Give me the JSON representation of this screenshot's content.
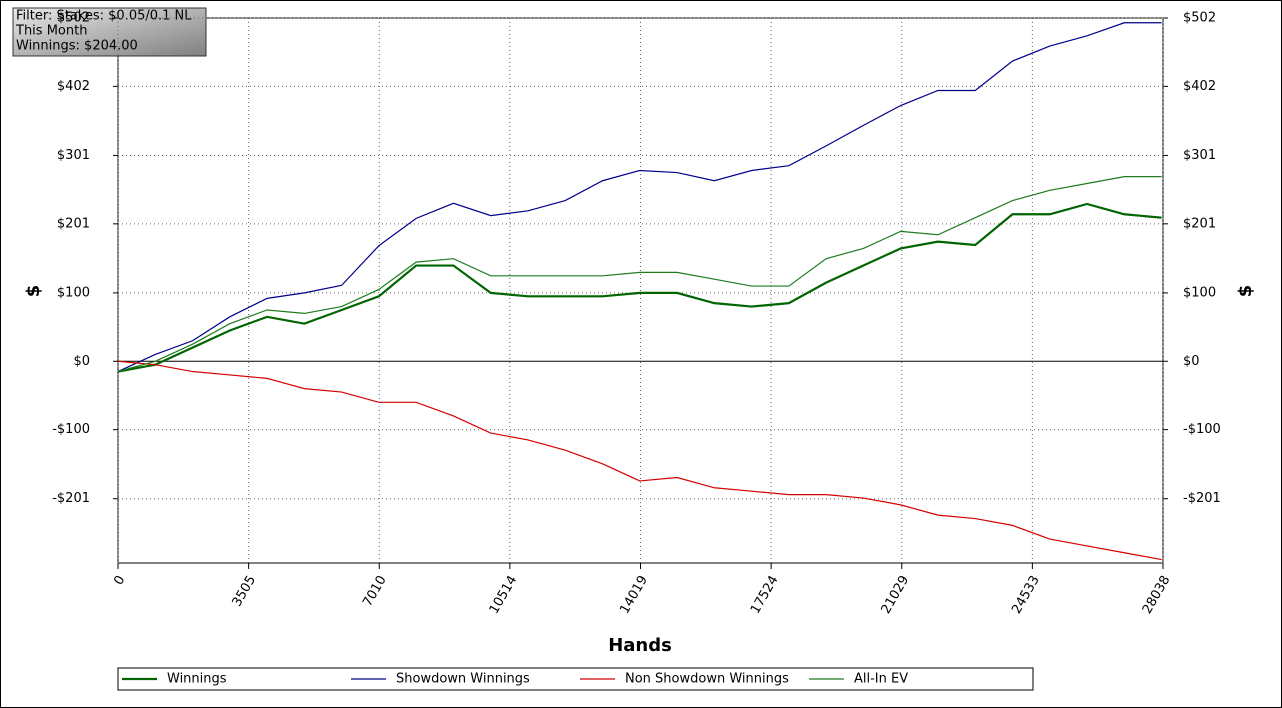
{
  "chart_data": {
    "type": "line",
    "annotations": [
      "Filter: Stakes: $0.05/0.1 NL",
      "This Month",
      "Winnings: $204.00"
    ],
    "x_label": "Hands",
    "y_label": "$",
    "x": [
      0,
      1000,
      2000,
      3000,
      4000,
      5000,
      6000,
      7000,
      8000,
      9000,
      10000,
      11000,
      12000,
      13000,
      14000,
      15000,
      16000,
      17000,
      18000,
      19000,
      20000,
      21000,
      22000,
      23000,
      24000,
      25000,
      26000,
      27000,
      28000
    ],
    "series": [
      {
        "name": "Winnings",
        "color": "#006400",
        "values": [
          -15,
          -5,
          20,
          45,
          65,
          55,
          75,
          95,
          140,
          140,
          100,
          95,
          95,
          95,
          100,
          100,
          85,
          80,
          85,
          115,
          140,
          165,
          175,
          170,
          215,
          215,
          230,
          215,
          210
        ]
      },
      {
        "name": "Showdown Winnings",
        "color": "#00008b",
        "values": [
          -15,
          10,
          30,
          65,
          92,
          100,
          111,
          169,
          209,
          231,
          213,
          220,
          235,
          264,
          279,
          276,
          264,
          279,
          286,
          315,
          345,
          374,
          396,
          396,
          439,
          461,
          476,
          495,
          495
        ]
      },
      {
        "name": "Non Showdown Winnings",
        "color": "#d40000",
        "values": [
          0,
          -5,
          -15,
          -20,
          -25,
          -40,
          -45,
          -60,
          -60,
          -80,
          -105,
          -115,
          -130,
          -150,
          -175,
          -170,
          -185,
          -190,
          -195,
          -195,
          -200,
          -210,
          -225,
          -230,
          -240,
          -260,
          -270,
          -280,
          -290
        ]
      },
      {
        "name": "All-In EV",
        "color": "#1e7b1e",
        "values": [
          -15,
          0,
          25,
          55,
          75,
          70,
          80,
          105,
          145,
          150,
          125,
          125,
          125,
          125,
          130,
          130,
          120,
          110,
          110,
          150,
          165,
          190,
          185,
          210,
          235,
          250,
          260,
          270,
          270
        ]
      }
    ],
    "xlim": [
      0,
      28038
    ],
    "xticks": [
      0,
      3505,
      7010,
      10514,
      14019,
      17524,
      21029,
      24533,
      28038
    ],
    "ylim": [
      -295,
      502
    ],
    "yticks": [
      {
        "value": 502,
        "label": "$502"
      },
      {
        "value": 402,
        "label": "$402"
      },
      {
        "value": 301,
        "label": "$301"
      },
      {
        "value": 201,
        "label": "$201"
      },
      {
        "value": 100,
        "label": "$100"
      },
      {
        "value": 0,
        "label": "$0"
      },
      {
        "value": -100,
        "label": "-$100"
      },
      {
        "value": -201,
        "label": "-$201"
      }
    ],
    "grid": true,
    "legend": "bottom"
  }
}
